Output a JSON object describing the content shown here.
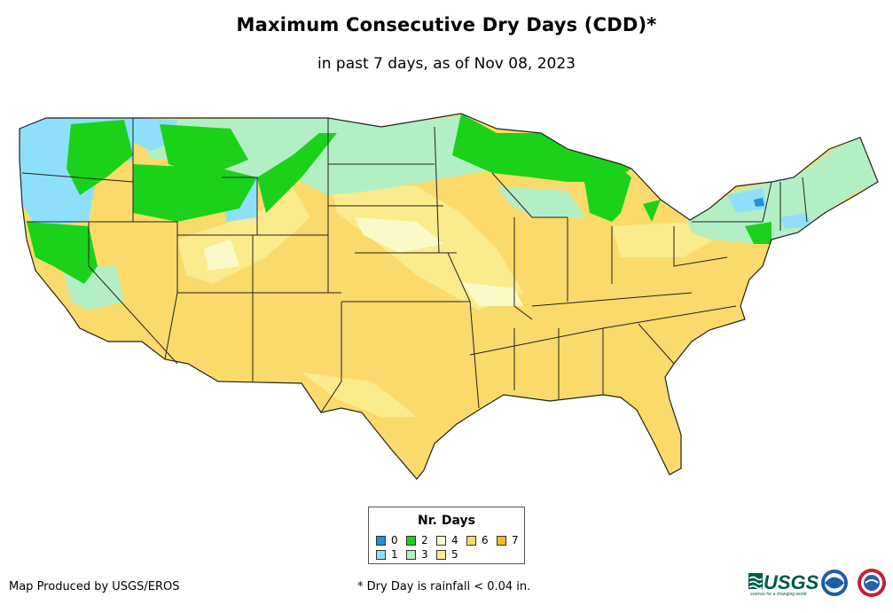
{
  "title": "Maximum Consecutive Dry Days (CDD)*",
  "subtitle": "in past 7 days, as of Nov 08, 2023",
  "legend": {
    "title": "Nr. Days",
    "items": [
      {
        "label": "0",
        "color": "#1e90e0"
      },
      {
        "label": "1",
        "color": "#8ee0fa"
      },
      {
        "label": "2",
        "color": "#1ad21a"
      },
      {
        "label": "3",
        "color": "#b2efc4"
      },
      {
        "label": "4",
        "color": "#fafac8"
      },
      {
        "label": "5",
        "color": "#faeb8c"
      },
      {
        "label": "6",
        "color": "#fada6a"
      },
      {
        "label": "7",
        "color": "#f5be1e"
      }
    ]
  },
  "footer": {
    "producer": "Map Produced by USGS/EROS",
    "note": "* Dry Day is rainfall < 0.04 in."
  },
  "logos": {
    "usgs": "USGS",
    "usgs_tagline": "science for a changing world"
  },
  "colors": {
    "background": "#ffffff",
    "state_border": "#222222"
  }
}
